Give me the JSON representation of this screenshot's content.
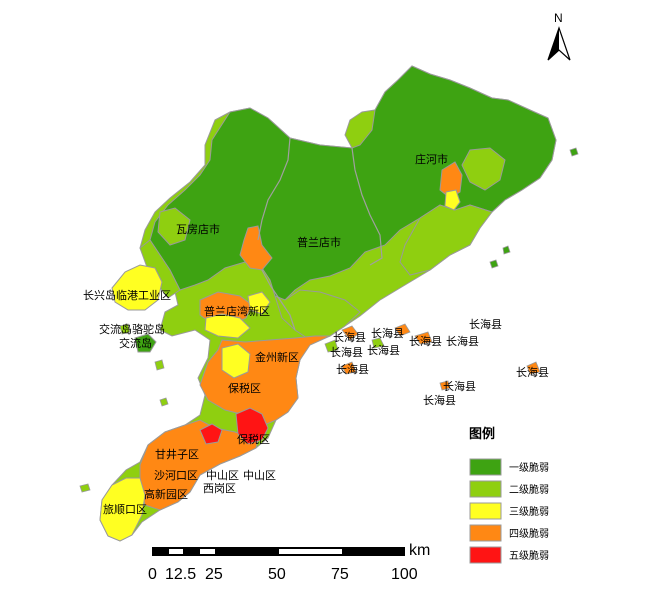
{
  "north_label": "N",
  "labels": {
    "zhuanghe": "庄河市",
    "wafangdian": "瓦房店市",
    "pulandian": "普兰店市",
    "changxingdao": "长兴岛临港工业区",
    "pulandian_bay": "普兰店湾新区",
    "jiaoliu_tuotuo": "交流岛骆驼岛",
    "jiaoliu": "交流岛",
    "jinzhou": "金州新区",
    "baoshui": "保税区",
    "baoshui2": "保税区",
    "ganjingzi": "甘井子区",
    "shahekou": "沙河口区",
    "zhongshan1": "中山区",
    "zhongshan2": "中山区",
    "xigang": "西岗区",
    "gaoxin": "高新园区",
    "lvshun": "旅顺口区",
    "changhai": [
      "长海县",
      "长海县",
      "长海县",
      "长海县",
      "长海县",
      "长海县",
      "长海县",
      "长海县",
      "长海县",
      "长海县",
      "长海县"
    ]
  },
  "legend": {
    "title": "图例",
    "items": [
      {
        "label": "一级脆弱",
        "color": "#3ea312"
      },
      {
        "label": "二级脆弱",
        "color": "#8fcf10"
      },
      {
        "label": "三级脆弱",
        "color": "#ffff22"
      },
      {
        "label": "四级脆弱",
        "color": "#ff8814"
      },
      {
        "label": "五级脆弱",
        "color": "#ff1414"
      }
    ]
  },
  "scale": {
    "unit": "km",
    "ticks": [
      "0",
      "12.5",
      "25",
      "50",
      "75",
      "100"
    ]
  },
  "colors": {
    "level1": "#3ea312",
    "level2": "#8fcf10",
    "level3": "#ffff22",
    "level4": "#ff8814",
    "level5": "#ff1414",
    "outline": "#9a9a9a"
  }
}
